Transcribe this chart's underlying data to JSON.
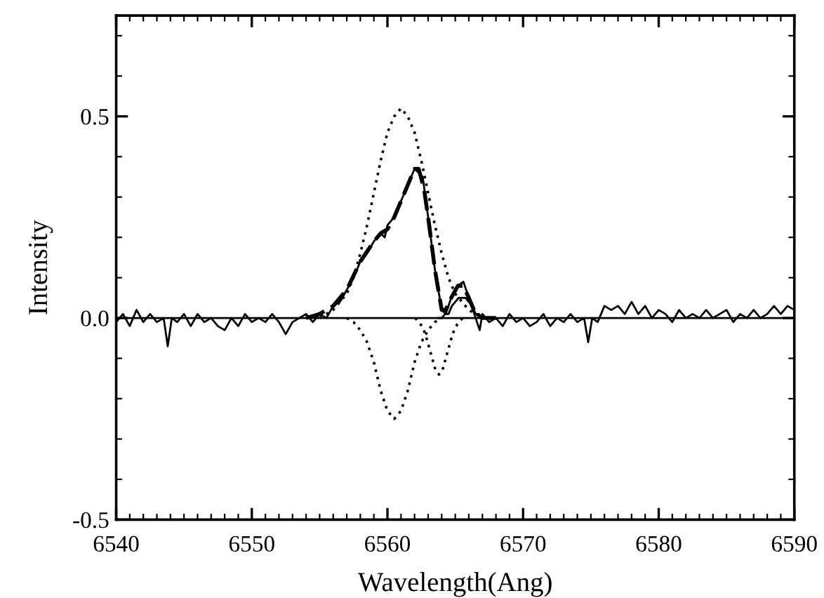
{
  "chart_data": {
    "type": "line",
    "xlabel": "Wavelength(Ang)",
    "ylabel": "Intensity",
    "xlim": [
      6540,
      6590
    ],
    "ylim": [
      -0.5,
      0.75
    ],
    "xticks": [
      {
        "value": 6540,
        "label": "6540"
      },
      {
        "value": 6541,
        "label": null
      },
      {
        "value": 6542,
        "label": null
      },
      {
        "value": 6543,
        "label": null
      },
      {
        "value": 6544,
        "label": null
      },
      {
        "value": 6545,
        "label": null
      },
      {
        "value": 6546,
        "label": null
      },
      {
        "value": 6547,
        "label": null
      },
      {
        "value": 6548,
        "label": null
      },
      {
        "value": 6549,
        "label": null
      },
      {
        "value": 6550,
        "label": "6550"
      },
      {
        "value": 6551,
        "label": null
      },
      {
        "value": 6552,
        "label": null
      },
      {
        "value": 6553,
        "label": null
      },
      {
        "value": 6554,
        "label": null
      },
      {
        "value": 6555,
        "label": null
      },
      {
        "value": 6556,
        "label": null
      },
      {
        "value": 6557,
        "label": null
      },
      {
        "value": 6558,
        "label": null
      },
      {
        "value": 6559,
        "label": null
      },
      {
        "value": 6560,
        "label": "6560"
      },
      {
        "value": 6561,
        "label": null
      },
      {
        "value": 6562,
        "label": null
      },
      {
        "value": 6563,
        "label": null
      },
      {
        "value": 6564,
        "label": null
      },
      {
        "value": 6565,
        "label": null
      },
      {
        "value": 6566,
        "label": null
      },
      {
        "value": 6567,
        "label": null
      },
      {
        "value": 6568,
        "label": null
      },
      {
        "value": 6569,
        "label": null
      },
      {
        "value": 6570,
        "label": "6570"
      },
      {
        "value": 6571,
        "label": null
      },
      {
        "value": 6572,
        "label": null
      },
      {
        "value": 6573,
        "label": null
      },
      {
        "value": 6574,
        "label": null
      },
      {
        "value": 6575,
        "label": null
      },
      {
        "value": 6576,
        "label": null
      },
      {
        "value": 6577,
        "label": null
      },
      {
        "value": 6578,
        "label": null
      },
      {
        "value": 6579,
        "label": null
      },
      {
        "value": 6580,
        "label": "6580"
      },
      {
        "value": 6581,
        "label": null
      },
      {
        "value": 6582,
        "label": null
      },
      {
        "value": 6583,
        "label": null
      },
      {
        "value": 6584,
        "label": null
      },
      {
        "value": 6585,
        "label": null
      },
      {
        "value": 6586,
        "label": null
      },
      {
        "value": 6587,
        "label": null
      },
      {
        "value": 6588,
        "label": null
      },
      {
        "value": 6589,
        "label": null
      },
      {
        "value": 6590,
        "label": "6590"
      }
    ],
    "yticks": [
      {
        "value": -0.5,
        "label": "-0.5"
      },
      {
        "value": -0.4,
        "label": null
      },
      {
        "value": -0.3,
        "label": null
      },
      {
        "value": -0.2,
        "label": null
      },
      {
        "value": -0.1,
        "label": null
      },
      {
        "value": 0.0,
        "label": "0.0"
      },
      {
        "value": 0.1,
        "label": null
      },
      {
        "value": 0.2,
        "label": null
      },
      {
        "value": 0.3,
        "label": null
      },
      {
        "value": 0.4,
        "label": null
      },
      {
        "value": 0.5,
        "label": "0.5"
      },
      {
        "value": 0.6,
        "label": null
      },
      {
        "value": 0.7,
        "label": null
      }
    ],
    "grid": false,
    "legend": false,
    "series": [
      {
        "color": "#000000",
        "line_style": "solid",
        "x": [
          6540,
          6540.5,
          6541,
          6541.5,
          6542,
          6542.5,
          6543,
          6543.5,
          6543.8,
          6544.1,
          6544.5,
          6545,
          6545.5,
          6546,
          6546.5,
          6547,
          6547.5,
          6548,
          6548.5,
          6549,
          6549.5,
          6550,
          6550.5,
          6551,
          6551.5,
          6552,
          6552.5,
          6553,
          6553.5,
          6554,
          6554.5,
          6555,
          6555.5,
          6556,
          6556.5,
          6557,
          6557.5,
          6558,
          6558.5,
          6559,
          6559.5,
          6559.8,
          6560,
          6560.5,
          6561,
          6561.5,
          6562,
          6562.3,
          6562.6,
          6563,
          6563.5,
          6564,
          6564.3,
          6564.7,
          6565.2,
          6565.6,
          6566,
          6566.5,
          6566.8,
          6567,
          6567.5,
          6568,
          6568.5,
          6569,
          6569.5,
          6570,
          6570.5,
          6571,
          6571.5,
          6572,
          6572.5,
          6573,
          6573.5,
          6574,
          6574.5,
          6574.8,
          6575.1,
          6575.5,
          6576,
          6576.5,
          6577,
          6577.5,
          6578,
          6578.5,
          6579,
          6579.5,
          6580,
          6580.5,
          6581,
          6581.5,
          6582,
          6582.5,
          6583,
          6583.5,
          6584,
          6584.5,
          6585,
          6585.5,
          6586,
          6586.5,
          6587,
          6587.5,
          6588,
          6588.5,
          6589,
          6589.5,
          6590
        ],
        "values": [
          -0.01,
          0.01,
          -0.02,
          0.02,
          -0.01,
          0.01,
          -0.01,
          0.0,
          -0.07,
          0.0,
          -0.01,
          0.01,
          -0.02,
          0.01,
          -0.01,
          0.0,
          -0.02,
          -0.03,
          0.0,
          -0.02,
          0.01,
          -0.01,
          0.0,
          -0.01,
          0.01,
          -0.01,
          -0.04,
          -0.01,
          0.0,
          0.01,
          -0.01,
          0.01,
          0.0,
          0.03,
          0.04,
          0.07,
          0.1,
          0.14,
          0.16,
          0.19,
          0.21,
          0.2,
          0.23,
          0.25,
          0.29,
          0.33,
          0.37,
          0.36,
          0.35,
          0.25,
          0.12,
          0.02,
          0.01,
          0.05,
          0.08,
          0.09,
          0.05,
          0.0,
          -0.03,
          0.01,
          -0.01,
          0.0,
          -0.02,
          0.01,
          -0.01,
          0.0,
          -0.02,
          -0.01,
          0.01,
          -0.02,
          0.0,
          -0.01,
          0.01,
          -0.01,
          0.0,
          -0.06,
          0.0,
          -0.01,
          0.03,
          0.02,
          0.03,
          0.01,
          0.04,
          0.01,
          0.03,
          0.0,
          0.02,
          0.01,
          -0.01,
          0.02,
          0.0,
          0.01,
          0.0,
          0.02,
          0.0,
          0.01,
          0.02,
          -0.01,
          0.01,
          0.0,
          0.02,
          0.0,
          0.01,
          0.03,
          0.01,
          0.03,
          0.02
        ]
      },
      {
        "color": "#000000",
        "line_style": "dashed",
        "x": [
          6554,
          6555,
          6556,
          6557,
          6558,
          6559,
          6559.5,
          6560,
          6560.5,
          6561,
          6561.5,
          6562,
          6562.3,
          6562.7,
          6563,
          6563.5,
          6564,
          6564.3,
          6564.7,
          6565.2,
          6565.6,
          6566,
          6566.5,
          6567,
          6568
        ],
        "values": [
          0.0,
          0.01,
          0.03,
          0.07,
          0.14,
          0.19,
          0.21,
          0.22,
          0.25,
          0.29,
          0.33,
          0.37,
          0.37,
          0.32,
          0.25,
          0.12,
          0.02,
          0.02,
          0.05,
          0.08,
          0.08,
          0.05,
          0.01,
          0.0,
          0.0
        ]
      },
      {
        "color": "#000000",
        "line_style": "dotted",
        "x": [
          6555,
          6555.5,
          6556,
          6556.5,
          6557,
          6557.5,
          6558,
          6558.5,
          6559,
          6559.5,
          6560,
          6560.5,
          6561,
          6561.5,
          6562,
          6562.5,
          6563,
          6563.5,
          6564,
          6564.5,
          6565,
          6565.5,
          6566,
          6566.5,
          6567
        ],
        "values": [
          0.0,
          0.01,
          0.02,
          0.04,
          0.06,
          0.1,
          0.16,
          0.23,
          0.31,
          0.39,
          0.46,
          0.5,
          0.52,
          0.5,
          0.46,
          0.39,
          0.31,
          0.23,
          0.16,
          0.1,
          0.06,
          0.04,
          0.02,
          0.01,
          0.0
        ]
      },
      {
        "color": "#000000",
        "line_style": "dotted",
        "x": [
          6557,
          6557.5,
          6558,
          6558.5,
          6559,
          6559.5,
          6560,
          6560.5,
          6561,
          6561.5,
          6562,
          6562.5,
          6563,
          6563.5,
          6564
        ],
        "values": [
          0.0,
          -0.01,
          -0.03,
          -0.06,
          -0.11,
          -0.18,
          -0.23,
          -0.25,
          -0.23,
          -0.18,
          -0.11,
          -0.06,
          -0.03,
          -0.01,
          0.0
        ]
      },
      {
        "color": "#000000",
        "line_style": "dotted",
        "x": [
          6562.05,
          6562.3,
          6562.55,
          6562.8,
          6563.05,
          6563.3,
          6563.55,
          6563.8,
          6564.05,
          6564.3,
          6564.55,
          6564.8,
          6565.05,
          6565.3,
          6565.55
        ],
        "values": [
          0.0,
          -0.01,
          -0.02,
          -0.04,
          -0.07,
          -0.1,
          -0.13,
          -0.14,
          -0.13,
          -0.1,
          -0.07,
          -0.04,
          -0.02,
          -0.01,
          0.0
        ]
      },
      {
        "color": "#000000",
        "line_style": "solid",
        "x": [
          6563.75,
          6564.0,
          6564.25,
          6564.5,
          6564.75,
          6565.0,
          6565.25,
          6565.5,
          6565.75,
          6566.0,
          6566.25,
          6566.5,
          6566.75,
          6567.0,
          6567.25
        ],
        "values": [
          0.0,
          0.0,
          0.01,
          0.01,
          0.03,
          0.04,
          0.05,
          0.05,
          0.05,
          0.04,
          0.03,
          0.01,
          0.01,
          0.0,
          0.0
        ]
      },
      {
        "color": "#000000",
        "line_style": "solid",
        "x": [
          6540,
          6590
        ],
        "values": [
          0.0,
          0.0
        ]
      }
    ]
  }
}
